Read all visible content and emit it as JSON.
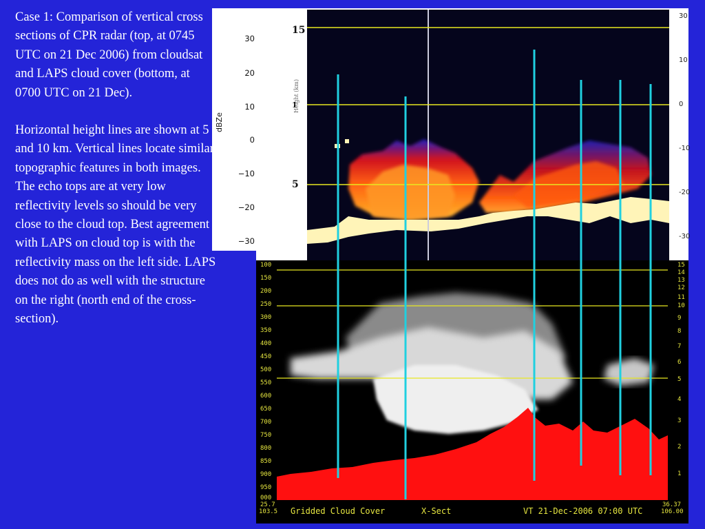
{
  "caption": {
    "paragraph1": "Case 1: Comparison of vertical cross sections of CPR radar (top, at 0745 UTC on 21 Dec 2006) from cloudsat and LAPS cloud cover (bottom, at 0700 UTC on 21 Dec).",
    "paragraph2": "Horizontal height lines are shown at 5 and 10 km.  Vertical lines locate similar topographic features in both images.  The echo tops are at very low reflectivity levels so should be very close to the cloud top.  Best agreement with LAPS on cloud top is with the reflectivity mass on the left side.  LAPS does not do as well with the structure on the right (north end of the cross-section)."
  },
  "colorbar": {
    "unit": "dBZe",
    "ticks": [
      "30",
      "20",
      "10",
      "0",
      "−10",
      "−20",
      "−30"
    ],
    "tick_values": [
      30,
      20,
      10,
      0,
      -10,
      -20,
      -30
    ]
  },
  "radar": {
    "left_ticks": [
      "15",
      "1",
      "5"
    ],
    "axis_title": "Height (km)",
    "right_ticks": [
      "30",
      "10",
      "0",
      "-10",
      "-20",
      "-30"
    ]
  },
  "cloud": {
    "left_ticks": [
      "100",
      "150",
      "200",
      "250",
      "300",
      "350",
      "400",
      "450",
      "500",
      "550",
      "600",
      "650",
      "700",
      "750",
      "800",
      "850",
      "900",
      "950",
      "000"
    ],
    "right_ticks": [
      "15",
      "14",
      "13",
      "12",
      "11",
      "10",
      "9",
      "8",
      "7",
      "6",
      "5",
      "4",
      "3",
      "2",
      "1"
    ],
    "footer": {
      "left_top": "25.7",
      "left_bottom": "103.5",
      "title": "Gridded Cloud Cover",
      "section": "X-Sect",
      "valid_time": "VT 21-Dec-2006 07:00 UTC",
      "right_top": "36.37",
      "right_bottom": "106.00"
    }
  },
  "colors": {
    "background": "#2424d8",
    "height_line": "#e8e820",
    "topography_line": "#20d0e0",
    "terrain": "#ff1010"
  }
}
